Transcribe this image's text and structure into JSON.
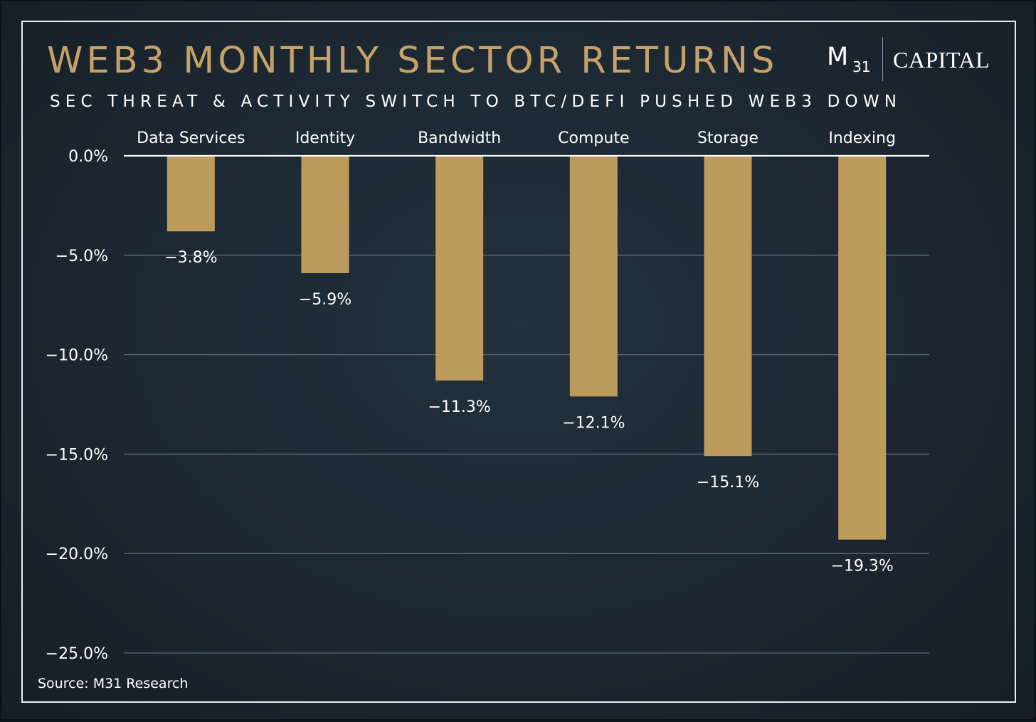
{
  "header": {
    "title": "WEB3 MONTHLY SECTOR RETURNS",
    "subtitle": "SEC THREAT & ACTIVITY SWITCH TO BTC/DEFI PUSHED WEB3 DOWN"
  },
  "logo": {
    "mark": "M",
    "mark_sub": "31",
    "name": "CAPITAL"
  },
  "footer": {
    "source": "Source: M31 Research"
  },
  "colors": {
    "bar": "#bc9c5d",
    "title": "#c4a26a",
    "gridline": "#5d6975",
    "zero_line": "#ffffff",
    "text": "#ffffff"
  },
  "chart_data": {
    "type": "bar",
    "orientation": "vertical",
    "categories": [
      "Data Services",
      "Identity",
      "Bandwidth",
      "Compute",
      "Storage",
      "Indexing"
    ],
    "values": [
      -3.8,
      -5.9,
      -11.3,
      -12.1,
      -15.1,
      -19.3
    ],
    "value_labels": [
      "−3.8%",
      "−5.9%",
      "−11.3%",
      "−12.1%",
      "−15.1%",
      "−19.3%"
    ],
    "title": "WEB3 MONTHLY SECTOR RETURNS",
    "subtitle": "SEC THREAT & ACTIVITY SWITCH TO BTC/DEFI PUSHED WEB3 DOWN",
    "xlabel": "",
    "ylabel": "",
    "ylim": [
      -25,
      0
    ],
    "yticks": [
      0,
      -5,
      -10,
      -15,
      -20,
      -25
    ],
    "ytick_labels": [
      "0.0%",
      "−5.0%",
      "−10.0%",
      "−15.0%",
      "−20.0%",
      "−25.0%"
    ],
    "category_axis_position": "top",
    "grid": true,
    "legend": "none"
  }
}
